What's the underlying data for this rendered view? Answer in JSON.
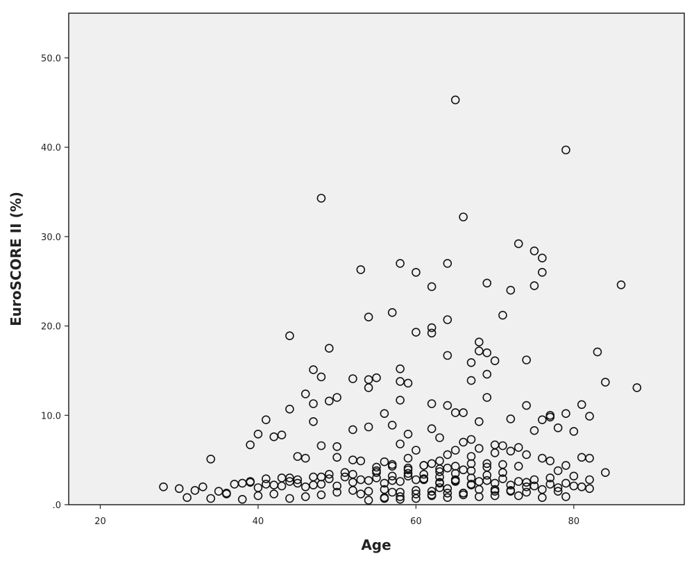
{
  "chart_data": {
    "type": "scatter",
    "title": "",
    "xlabel": "Age",
    "ylabel": "EuroSCORE II (%)",
    "xlim": [
      16,
      94
    ],
    "ylim": [
      0,
      55
    ],
    "xticks": [
      20,
      40,
      60,
      80
    ],
    "xtick_labels": [
      "20",
      "40",
      "60",
      "80"
    ],
    "yticks": [
      0,
      10,
      20,
      30,
      40,
      50
    ],
    "ytick_labels": [
      ".0",
      "10.0",
      "20.0",
      "30.0",
      "40.0",
      "50.0"
    ],
    "grid": false,
    "marker": "open-circle",
    "colors": {
      "plot_background": "#f0f0f0",
      "marker_stroke": "#111111",
      "axis": "#222222"
    },
    "series": [
      {
        "x": [
          65,
          79,
          48,
          66,
          73,
          75,
          76,
          53,
          58,
          60,
          64,
          76,
          69,
          86,
          75,
          62,
          72,
          57,
          54,
          71,
          62,
          64,
          60,
          62,
          44,
          68,
          68,
          49,
          69,
          83,
          64,
          74,
          70,
          67,
          47,
          58,
          58,
          69,
          48,
          54,
          52,
          55,
          67,
          59,
          84,
          54,
          88,
          46,
          50,
          58,
          49,
          62,
          69,
          64,
          47,
          44,
          66,
          72,
          81,
          79,
          77,
          77,
          65,
          76,
          82,
          56,
          41,
          68,
          74,
          47,
          57,
          80,
          78,
          59,
          75,
          52,
          54,
          67,
          43,
          39,
          40,
          62,
          48,
          50,
          42,
          34,
          45,
          81,
          82,
          84,
          63,
          58,
          46,
          60,
          73,
          70,
          65,
          66,
          68,
          71,
          70,
          72,
          64,
          53,
          50,
          52,
          56,
          59,
          61,
          63,
          67,
          69,
          73,
          74,
          76,
          77,
          78,
          79,
          80,
          62,
          64,
          66,
          57,
          55,
          51,
          49,
          47,
          45,
          43,
          41,
          39,
          37,
          35,
          33,
          31,
          28,
          30,
          32,
          36,
          38,
          40,
          42,
          44,
          46,
          48,
          50,
          52,
          54,
          56,
          58,
          60,
          61,
          63,
          65,
          67,
          68,
          70,
          72,
          74,
          75,
          77,
          78,
          80,
          81,
          82,
          55,
          59,
          61,
          63,
          65,
          67,
          69,
          71,
          53,
          57,
          62,
          66,
          70,
          72,
          56,
          58,
          60,
          64,
          68,
          73,
          76,
          79,
          50,
          48,
          46,
          44,
          42,
          40,
          38,
          52,
          54,
          56,
          58,
          60,
          62,
          64,
          66,
          68,
          70,
          72,
          74,
          76,
          78,
          49,
          51,
          53,
          55,
          57,
          59,
          61,
          63,
          65,
          67,
          69,
          71,
          73,
          75,
          77,
          47,
          45,
          43,
          41,
          39,
          55,
          57,
          59,
          61,
          63,
          65,
          67,
          69,
          71,
          60,
          62,
          64,
          66,
          58,
          56,
          54,
          61,
          63,
          65,
          59,
          57,
          63,
          67,
          70,
          74,
          52,
          48,
          44,
          79,
          82,
          36,
          34
        ],
        "y": [
          45.3,
          39.7,
          34.3,
          32.2,
          29.2,
          28.4,
          27.6,
          26.3,
          27.0,
          26.0,
          27.0,
          26.0,
          24.8,
          24.6,
          24.5,
          24.4,
          24.0,
          21.5,
          21.0,
          21.2,
          19.8,
          20.7,
          19.3,
          19.2,
          18.9,
          18.2,
          17.2,
          17.5,
          17.0,
          17.1,
          16.7,
          16.2,
          16.1,
          15.9,
          15.1,
          15.2,
          13.8,
          14.6,
          14.3,
          14.0,
          14.1,
          14.2,
          13.9,
          13.6,
          13.7,
          13.1,
          13.1,
          12.4,
          12.0,
          11.7,
          11.6,
          11.3,
          12.0,
          11.1,
          11.3,
          10.7,
          10.3,
          9.6,
          11.2,
          10.2,
          9.8,
          10.0,
          10.3,
          9.5,
          9.9,
          10.2,
          9.5,
          9.3,
          11.1,
          9.3,
          8.9,
          8.2,
          8.6,
          7.9,
          8.3,
          8.4,
          8.7,
          7.3,
          7.8,
          6.7,
          7.9,
          8.5,
          6.6,
          6.5,
          7.6,
          5.1,
          5.4,
          5.3,
          5.2,
          3.6,
          7.5,
          6.8,
          5.2,
          6.1,
          6.4,
          6.7,
          6.1,
          7.0,
          6.3,
          6.6,
          5.8,
          6.0,
          5.6,
          4.9,
          5.3,
          5.0,
          4.8,
          5.2,
          4.4,
          4.9,
          5.4,
          4.6,
          4.3,
          5.6,
          5.2,
          4.9,
          3.8,
          4.4,
          3.2,
          4.6,
          4.1,
          3.9,
          4.3,
          3.8,
          3.6,
          3.4,
          3.1,
          2.8,
          3.0,
          2.9,
          2.6,
          2.3,
          1.5,
          2.0,
          0.8,
          2.0,
          1.8,
          1.6,
          1.3,
          2.4,
          1.9,
          2.2,
          2.6,
          2.0,
          2.3,
          2.1,
          2.5,
          2.7,
          2.4,
          2.6,
          2.8,
          2.9,
          2.5,
          2.7,
          2.3,
          2.6,
          2.4,
          2.2,
          2.5,
          2.1,
          2.3,
          1.9,
          2.1,
          2.0,
          1.8,
          3.6,
          3.9,
          3.4,
          3.7,
          3.5,
          3.8,
          3.3,
          3.6,
          1.2,
          1.4,
          1.1,
          1.3,
          1.0,
          1.5,
          0.8,
          0.9,
          0.7,
          0.8,
          0.9,
          1.0,
          0.8,
          0.9,
          1.4,
          1.1,
          0.9,
          0.7,
          1.2,
          1.0,
          0.6,
          1.6,
          1.5,
          1.7,
          1.4,
          1.6,
          1.5,
          1.8,
          1.3,
          1.7,
          1.5,
          1.6,
          1.4,
          1.7,
          1.5,
          2.9,
          3.1,
          2.8,
          3.0,
          2.7,
          3.2,
          2.9,
          3.1,
          2.8,
          3.0,
          2.7,
          2.9,
          2.6,
          2.8,
          3.0,
          2.2,
          2.4,
          2.1,
          2.3,
          2.5,
          4.2,
          4.5,
          4.1,
          4.4,
          4.0,
          4.3,
          4.6,
          4.2,
          4.5,
          1.2,
          1.0,
          1.3,
          1.1,
          0.6,
          0.7,
          0.5,
          2.8,
          2.4,
          2.6,
          3.5,
          3.2,
          1.9,
          2.2,
          1.7,
          2.0,
          3.4,
          3.1,
          3.0,
          2.4,
          2.8,
          1.2,
          0.7
        ]
      }
    ]
  }
}
